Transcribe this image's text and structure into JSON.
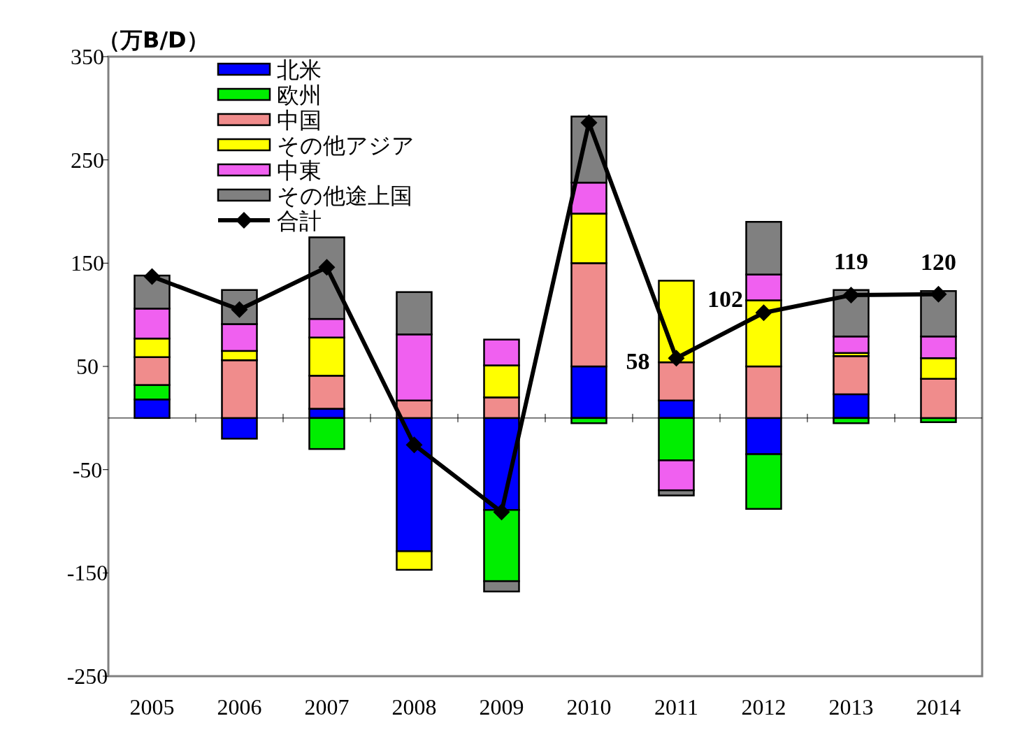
{
  "chart_data": {
    "type": "bar",
    "stacked": true,
    "ylabel": "（万B/D）",
    "categories": [
      "2005",
      "2006",
      "2007",
      "2008",
      "2009",
      "2010",
      "2011",
      "2012",
      "2013",
      "2014"
    ],
    "ylim": [
      -250,
      350
    ],
    "yticks": [
      350,
      250,
      150,
      50,
      -50,
      -150,
      -250
    ],
    "legend": "top left",
    "marker": "diamond",
    "series": [
      {
        "name": "北米",
        "color": "#0000ff",
        "values": [
          18,
          -20,
          9,
          -129,
          -89,
          50,
          17,
          -35,
          23,
          null
        ]
      },
      {
        "name": "欧州",
        "color": "#00ee00",
        "values": [
          14,
          0,
          -30,
          0,
          -69,
          -5,
          -41,
          -53,
          -5,
          -4
        ]
      },
      {
        "name": "中国",
        "color": "#f08c8c",
        "values": [
          27,
          56,
          32,
          17,
          20,
          100,
          37,
          50,
          37,
          38
        ]
      },
      {
        "name": "その他アジア",
        "color": "#ffff00",
        "values": [
          18,
          9,
          37,
          -18,
          31,
          48,
          79,
          64,
          3,
          20
        ]
      },
      {
        "name": "中東",
        "color": "#f060f0",
        "values": [
          29,
          26,
          18,
          64,
          25,
          30,
          -29,
          25,
          16,
          21
        ]
      },
      {
        "name": "その他途上国",
        "color": "#808080",
        "values": [
          32,
          33,
          79,
          41,
          -10,
          64,
          -5,
          51,
          45,
          44
        ]
      },
      {
        "name": "合計",
        "type": "line",
        "color": "#000000",
        "values": [
          137,
          105,
          146,
          -26,
          -91,
          286,
          58,
          102,
          119,
          120
        ],
        "value_labels": [
          null,
          null,
          null,
          null,
          null,
          null,
          "58",
          "102",
          "119",
          "120"
        ]
      }
    ]
  }
}
